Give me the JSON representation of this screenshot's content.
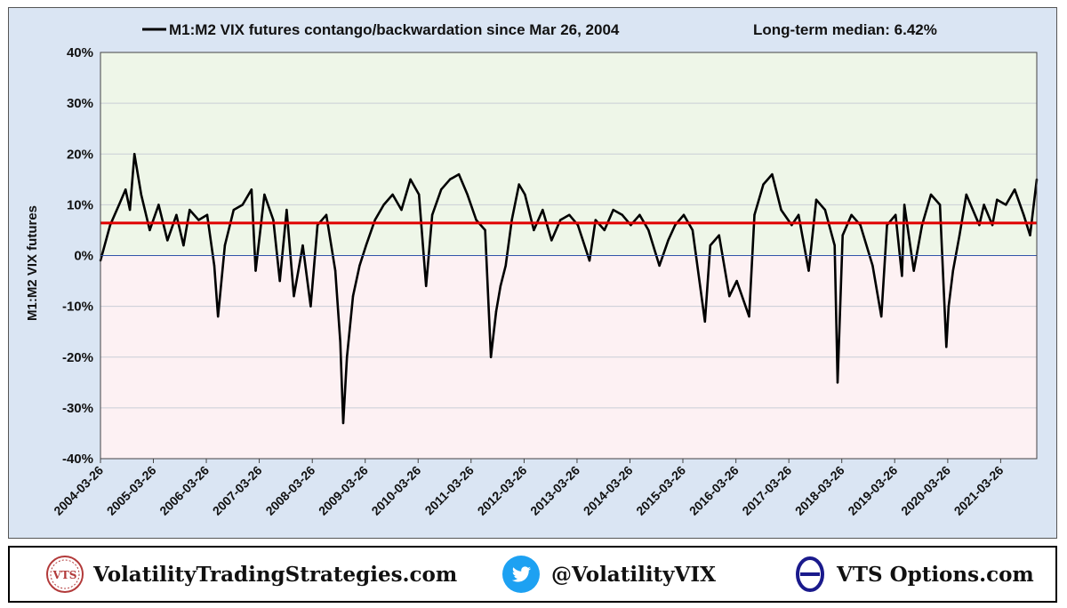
{
  "chart_data": {
    "type": "line",
    "title": "M1:M2 VIX futures contango/backwardation since Mar 26, 2004",
    "annotation": "Long-term median:  6.42%",
    "ylabel": "M1:M2 VIX futures",
    "xlabel": "",
    "ylim": [
      -40,
      40
    ],
    "y_ticks": [
      "40%",
      "30%",
      "20%",
      "10%",
      "0%",
      "-10%",
      "-20%",
      "-30%",
      "-40%"
    ],
    "y_tick_values": [
      40,
      30,
      20,
      10,
      0,
      -10,
      -20,
      -30,
      -40
    ],
    "x_ticks": [
      "2004-03-26",
      "2005-03-26",
      "2006-03-26",
      "2007-03-26",
      "2008-03-26",
      "2009-03-26",
      "2010-03-26",
      "2011-03-26",
      "2012-03-26",
      "2013-03-26",
      "2014-03-26",
      "2015-03-26",
      "2016-03-26",
      "2017-03-26",
      "2018-03-26",
      "2019-03-26",
      "2020-03-26",
      "2021-03-26"
    ],
    "x_range": [
      "2004-03-26",
      "2021-11-30"
    ],
    "median": 6.42,
    "grid": true,
    "legend": "top-left",
    "colors": {
      "series": "#000000",
      "median": "#e00000",
      "positive_zone": "#eef6e8",
      "negative_zone": "#fdf1f3",
      "zero_line": "#3355aa"
    },
    "series": [
      {
        "name": "M1:M2 VIX futures contango/backwardation since Mar 26, 2004",
        "x": [
          "2004-03-26",
          "2004-06-01",
          "2004-08-01",
          "2004-09-15",
          "2004-10-15",
          "2004-11-15",
          "2005-01-01",
          "2005-03-01",
          "2005-05-01",
          "2005-07-01",
          "2005-09-01",
          "2005-10-20",
          "2005-12-01",
          "2006-02-01",
          "2006-04-01",
          "2006-05-20",
          "2006-06-15",
          "2006-08-01",
          "2006-10-01",
          "2006-12-01",
          "2007-02-01",
          "2007-03-01",
          "2007-05-01",
          "2007-07-01",
          "2007-08-15",
          "2007-10-01",
          "2007-11-20",
          "2008-01-20",
          "2008-03-15",
          "2008-05-01",
          "2008-07-01",
          "2008-09-01",
          "2008-10-05",
          "2008-10-25",
          "2008-11-20",
          "2009-01-01",
          "2009-02-15",
          "2009-04-01",
          "2009-06-01",
          "2009-08-01",
          "2009-10-01",
          "2009-12-01",
          "2010-02-01",
          "2010-04-01",
          "2010-05-20",
          "2010-07-01",
          "2010-09-01",
          "2010-11-01",
          "2011-01-01",
          "2011-03-01",
          "2011-05-01",
          "2011-07-01",
          "2011-08-10",
          "2011-09-15",
          "2011-10-15",
          "2011-11-20",
          "2012-01-01",
          "2012-02-20",
          "2012-04-01",
          "2012-06-01",
          "2012-08-01",
          "2012-10-01",
          "2012-12-01",
          "2013-02-01",
          "2013-04-01",
          "2013-06-20",
          "2013-08-01",
          "2013-10-01",
          "2013-12-01",
          "2014-02-01",
          "2014-04-01",
          "2014-06-01",
          "2014-08-01",
          "2014-10-15",
          "2014-12-15",
          "2015-02-01",
          "2015-04-01",
          "2015-06-01",
          "2015-08-25",
          "2015-10-01",
          "2015-12-01",
          "2016-02-10",
          "2016-04-01",
          "2016-06-25",
          "2016-08-01",
          "2016-10-01",
          "2016-12-01",
          "2017-02-01",
          "2017-04-15",
          "2017-06-01",
          "2017-08-10",
          "2017-10-01",
          "2017-12-01",
          "2018-02-05",
          "2018-02-25",
          "2018-04-01",
          "2018-06-01",
          "2018-08-01",
          "2018-10-25",
          "2018-12-24",
          "2019-02-01",
          "2019-04-01",
          "2019-05-15",
          "2019-06-01",
          "2019-08-05",
          "2019-10-01",
          "2019-12-01",
          "2020-02-01",
          "2020-03-16",
          "2020-04-01",
          "2020-05-01",
          "2020-06-15",
          "2020-08-01",
          "2020-10-30",
          "2020-12-01",
          "2021-01-28",
          "2021-03-01",
          "2021-05-01",
          "2021-07-01",
          "2021-09-01",
          "2021-10-15",
          "2021-11-30"
        ],
        "values": [
          -1,
          6,
          10,
          13,
          9,
          20,
          12,
          5,
          10,
          3,
          8,
          2,
          9,
          7,
          8,
          -2,
          -12,
          2,
          9,
          10,
          13,
          -3,
          12,
          7,
          -5,
          9,
          -8,
          2,
          -10,
          6,
          8,
          -3,
          -17,
          -33,
          -20,
          -8,
          -2,
          2,
          7,
          10,
          12,
          9,
          15,
          12,
          -6,
          8,
          13,
          15,
          16,
          12,
          7,
          5,
          -20,
          -11,
          -6,
          -2,
          7,
          14,
          12,
          5,
          9,
          3,
          7,
          8,
          6,
          -1,
          7,
          5,
          9,
          8,
          6,
          8,
          5,
          -2,
          3,
          6,
          8,
          5,
          -13,
          2,
          4,
          -8,
          -5,
          -12,
          8,
          14,
          16,
          9,
          6,
          8,
          -3,
          11,
          9,
          2,
          -25,
          4,
          8,
          6,
          -2,
          -12,
          6,
          8,
          -4,
          10,
          -3,
          6,
          12,
          10,
          -18,
          -10,
          -3,
          4,
          12,
          6,
          10,
          6,
          11,
          10,
          13,
          8,
          4,
          15
        ]
      }
    ]
  },
  "footer": {
    "site_label": "VolatilityTradingStrategies.com",
    "vts_logo_text": "VTS",
    "twitter_label": "@VolatilityVIX",
    "options_label": "VTS Options.com",
    "theta_symbol": "Θ"
  }
}
